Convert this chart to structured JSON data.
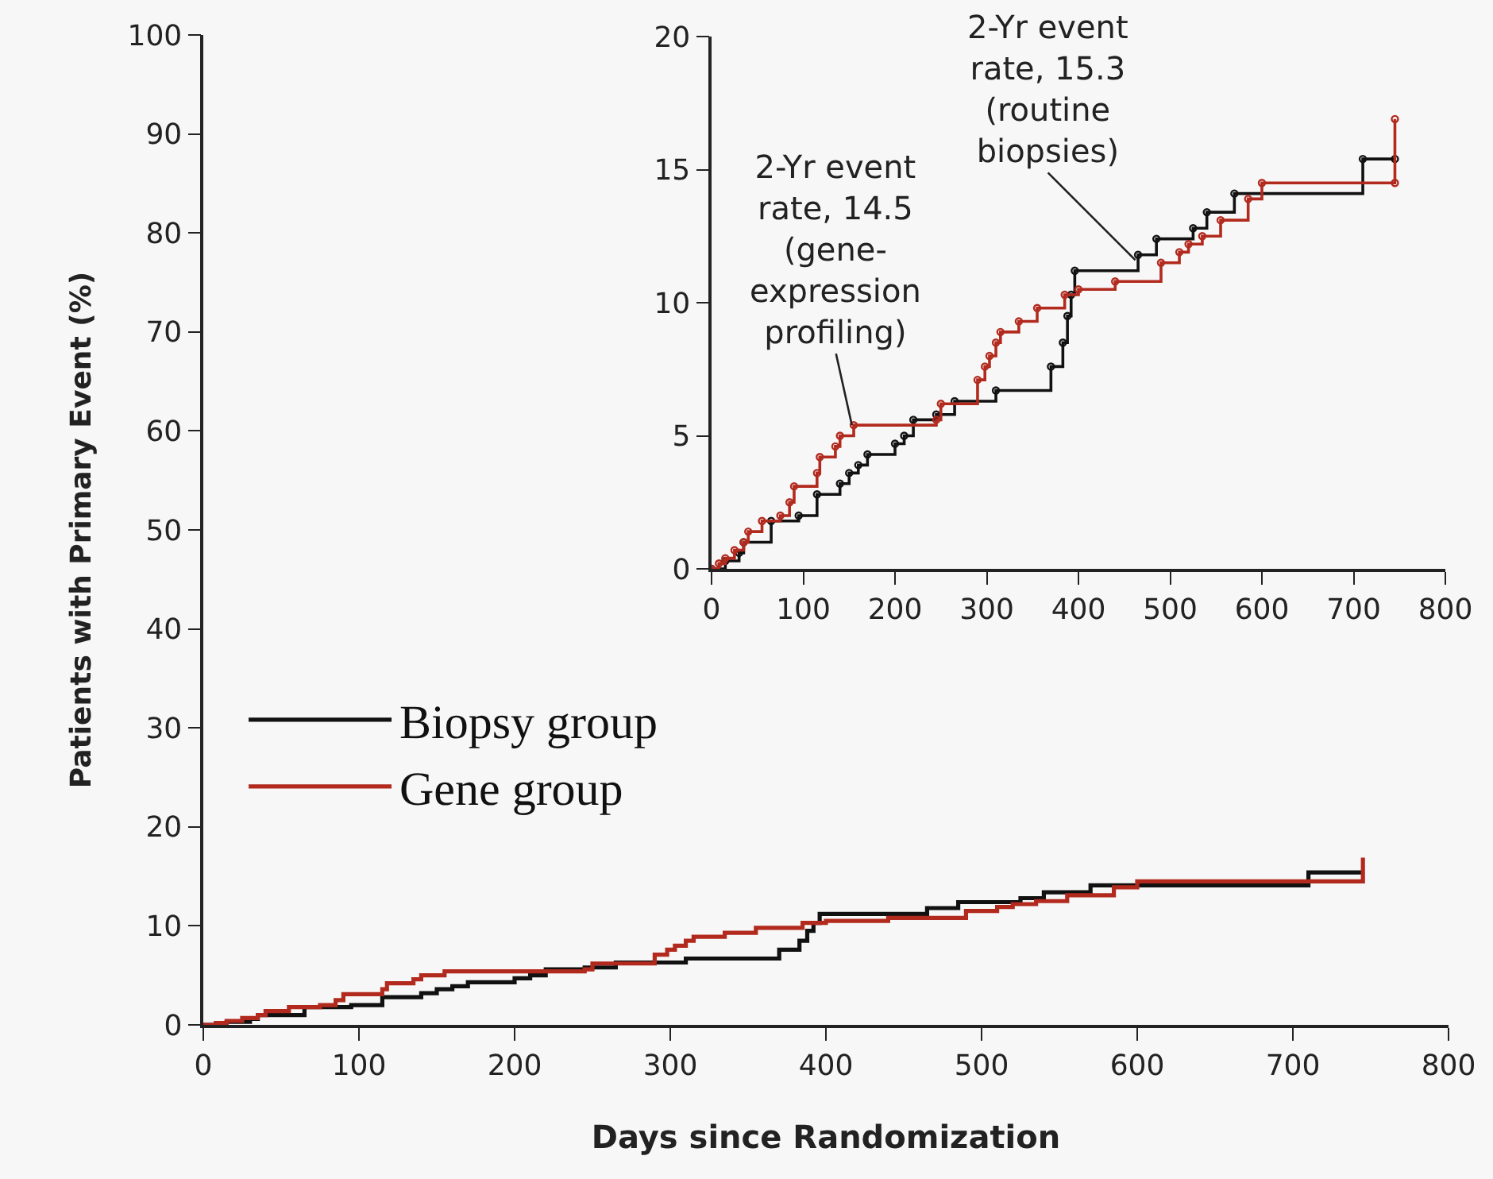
{
  "chart_data": [
    {
      "type": "step",
      "xlabel": "Days since Randomization",
      "ylabel": "Patients with Primary Event (%)",
      "xlim": [
        0,
        800
      ],
      "xticks": [
        0,
        100,
        200,
        300,
        400,
        500,
        600,
        700,
        800
      ],
      "ylim": [
        0,
        100
      ],
      "yticks": [
        0,
        10,
        20,
        30,
        40,
        50,
        60,
        70,
        80,
        90,
        100
      ],
      "grid": false,
      "legend": "left",
      "marker": "none",
      "series": [
        {
          "name": "Biopsy group",
          "color": "#111111",
          "x": [
            0,
            15,
            30,
            35,
            65,
            95,
            115,
            140,
            150,
            160,
            170,
            200,
            210,
            220,
            245,
            265,
            310,
            370,
            383,
            388,
            392,
            396,
            465,
            485,
            525,
            540,
            570,
            710,
            745
          ],
          "values": [
            0,
            0.3,
            0.6,
            1.0,
            1.8,
            2.0,
            2.8,
            3.2,
            3.6,
            3.9,
            4.3,
            4.7,
            5.0,
            5.6,
            5.8,
            6.3,
            6.7,
            7.6,
            8.5,
            9.5,
            10.3,
            11.2,
            11.8,
            12.4,
            12.8,
            13.4,
            14.1,
            15.4,
            15.4
          ]
        },
        {
          "name": "Gene group",
          "color": "#b22a1e",
          "x": [
            0,
            8,
            15,
            25,
            35,
            40,
            55,
            75,
            85,
            90,
            115,
            118,
            135,
            140,
            155,
            245,
            250,
            290,
            298,
            303,
            310,
            315,
            335,
            355,
            385,
            400,
            440,
            490,
            510,
            520,
            535,
            555,
            585,
            600,
            745,
            745
          ],
          "values": [
            0,
            0.2,
            0.4,
            0.7,
            1.0,
            1.4,
            1.8,
            2.0,
            2.5,
            3.1,
            3.6,
            4.2,
            4.6,
            5.0,
            5.4,
            5.6,
            6.2,
            7.1,
            7.6,
            8.0,
            8.5,
            8.9,
            9.3,
            9.8,
            10.3,
            10.5,
            10.8,
            11.5,
            11.9,
            12.2,
            12.5,
            13.1,
            13.9,
            14.5,
            14.5,
            16.9
          ]
        }
      ]
    },
    {
      "type": "step",
      "xlim": [
        0,
        800
      ],
      "xticks": [
        0,
        100,
        200,
        300,
        400,
        500,
        600,
        700,
        800
      ],
      "ylim": [
        0,
        20
      ],
      "yticks": [
        0,
        5,
        10,
        15,
        20
      ],
      "grid": false,
      "legend": false,
      "marker": "circle",
      "annotations": [
        {
          "text": "2-Yr event rate, 14.5 (gene-expression profiling)",
          "x": 153,
          "y": 5.4
        },
        {
          "text": "2-Yr event rate, 15.3 (routine biopsies)",
          "x": 462,
          "y": 11.6
        }
      ],
      "series": [
        {
          "color": "#111111",
          "x": [
            0,
            15,
            30,
            35,
            65,
            95,
            115,
            140,
            150,
            160,
            170,
            200,
            210,
            220,
            245,
            265,
            310,
            370,
            383,
            388,
            392,
            396,
            465,
            485,
            525,
            540,
            570,
            710,
            745
          ],
          "values": [
            0,
            0.3,
            0.6,
            1.0,
            1.8,
            2.0,
            2.8,
            3.2,
            3.6,
            3.9,
            4.3,
            4.7,
            5.0,
            5.6,
            5.8,
            6.3,
            6.7,
            7.6,
            8.5,
            9.5,
            10.3,
            11.2,
            11.8,
            12.4,
            12.8,
            13.4,
            14.1,
            15.4,
            15.4
          ]
        },
        {
          "color": "#b22a1e",
          "x": [
            0,
            8,
            15,
            25,
            35,
            40,
            55,
            75,
            85,
            90,
            115,
            118,
            135,
            140,
            155,
            245,
            250,
            290,
            298,
            303,
            310,
            315,
            335,
            355,
            385,
            400,
            440,
            490,
            510,
            520,
            535,
            555,
            585,
            600,
            745,
            745
          ],
          "values": [
            0,
            0.2,
            0.4,
            0.7,
            1.0,
            1.4,
            1.8,
            2.0,
            2.5,
            3.1,
            3.6,
            4.2,
            4.6,
            5.0,
            5.4,
            5.6,
            6.2,
            7.1,
            7.6,
            8.0,
            8.5,
            8.9,
            9.3,
            9.8,
            10.3,
            10.5,
            10.8,
            11.5,
            11.9,
            12.2,
            12.5,
            13.1,
            13.9,
            14.5,
            14.5,
            16.9
          ]
        }
      ]
    }
  ]
}
